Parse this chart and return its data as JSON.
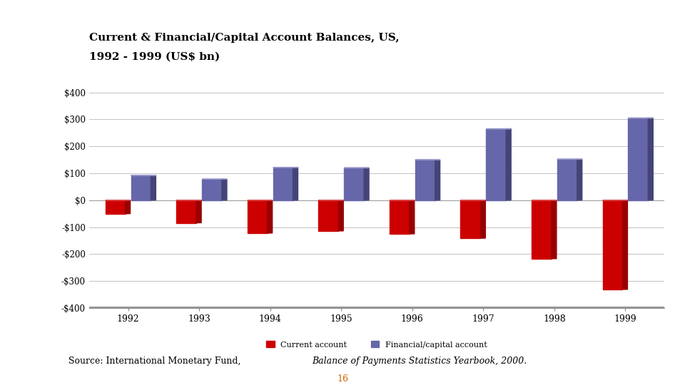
{
  "title_line1": "Current & Financial/Capital Account Balances, US,",
  "title_line2": "1992 - 1999 (US$ bn)",
  "years": [
    1992,
    1993,
    1994,
    1995,
    1996,
    1997,
    1998,
    1999
  ],
  "current_account": [
    -50,
    -84,
    -122,
    -114,
    -125,
    -141,
    -217,
    -331
  ],
  "financial_account": [
    92,
    78,
    122,
    120,
    150,
    265,
    152,
    305
  ],
  "current_color": "#cc0000",
  "current_dark": "#990000",
  "current_light": "#dd4444",
  "financial_color": "#6666aa",
  "financial_dark": "#444477",
  "financial_light": "#9999cc",
  "bar_width": 0.28,
  "bar_depth": 0.07,
  "ylim": [
    -400,
    400
  ],
  "yticks": [
    -400,
    -300,
    -200,
    -100,
    0,
    100,
    200,
    300,
    400
  ],
  "source_text": "Source: International Monetary Fund, ",
  "source_italic": "Balance of Payments Statistics Yearbook, 2000.",
  "page_num": "16",
  "legend_label_current": "Current account",
  "legend_label_financial": "Financial/capital account",
  "title_color": "#000000",
  "page_color": "#cc6600",
  "background_color": "#ffffff",
  "grid_color": "#aaaaaa",
  "axis_color": "#888888"
}
